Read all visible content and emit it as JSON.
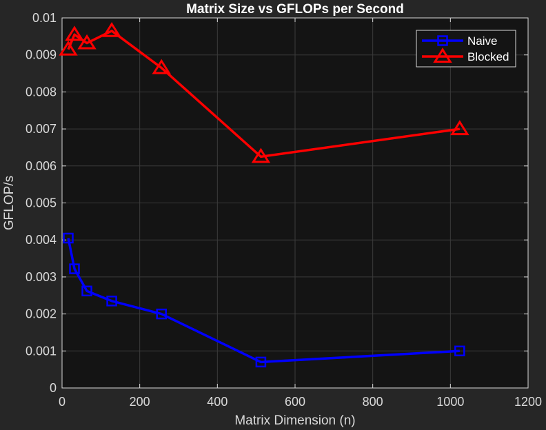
{
  "chart_data": {
    "type": "line",
    "title": "Matrix Size vs GFLOPs per Second",
    "xlabel": "Matrix Dimension (n)",
    "ylabel": "GFLOP/s",
    "xlim": [
      0,
      1200
    ],
    "ylim": [
      0,
      0.01
    ],
    "xticks": [
      0,
      200,
      400,
      600,
      800,
      1000,
      1200
    ],
    "xtick_labels": [
      "0",
      "200",
      "400",
      "600",
      "800",
      "1000",
      "1200"
    ],
    "yticks": [
      0,
      0.001,
      0.002,
      0.003,
      0.004,
      0.005,
      0.006,
      0.007,
      0.008,
      0.009,
      0.01
    ],
    "ytick_labels": [
      "0",
      "0.001",
      "0.002",
      "0.003",
      "0.004",
      "0.005",
      "0.006",
      "0.007",
      "0.008",
      "0.009",
      "0.01"
    ],
    "grid": true,
    "legend_position": "top-right",
    "background_color": "#262626",
    "axes_color": "#141414",
    "series": [
      {
        "name": "Naive",
        "color": "#0000ff",
        "marker": "square",
        "x": [
          16,
          32,
          64,
          128,
          256,
          512,
          1024
        ],
        "y": [
          0.00405,
          0.00322,
          0.00262,
          0.00235,
          0.002,
          0.0007,
          0.001
        ]
      },
      {
        "name": "Blocked",
        "color": "#ff0000",
        "marker": "triangle",
        "x": [
          16,
          32,
          64,
          128,
          256,
          512,
          1024
        ],
        "y": [
          0.00915,
          0.00955,
          0.00932,
          0.00965,
          0.00865,
          0.00625,
          0.007
        ]
      }
    ]
  }
}
